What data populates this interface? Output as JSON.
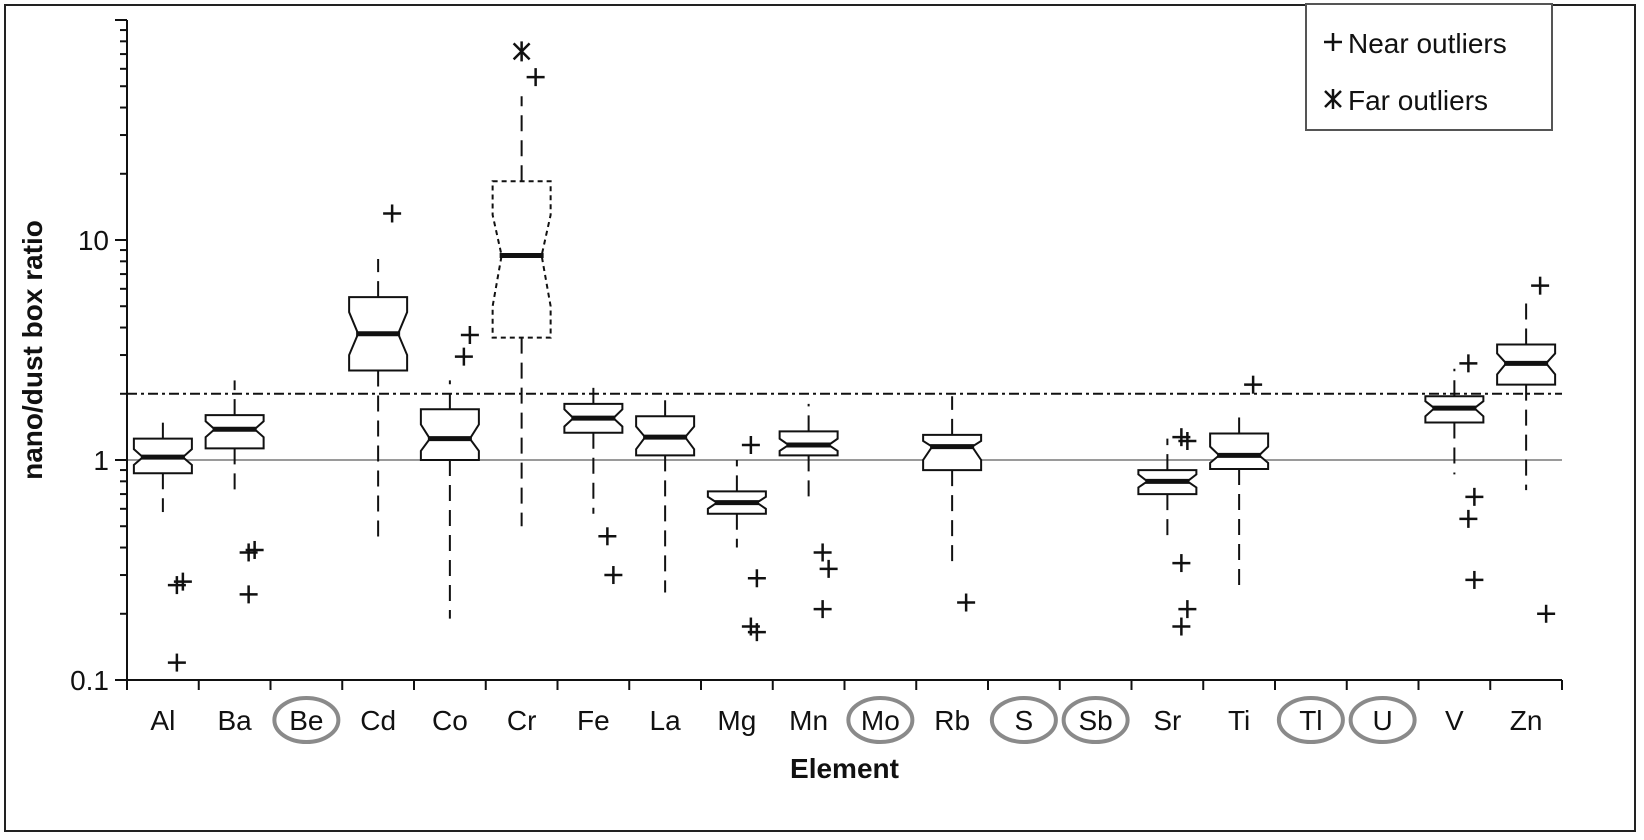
{
  "chart_data": {
    "type": "box",
    "xlabel": "Element",
    "ylabel": "nano/dust box ratio",
    "yscale": "log",
    "ylim": [
      0.1,
      100
    ],
    "yticks": [
      {
        "value": 0.1,
        "label": "0.1"
      },
      {
        "value": 1,
        "label": "1"
      },
      {
        "value": 10,
        "label": "10"
      }
    ],
    "reference_lines": [
      {
        "value": 1,
        "style": "solid",
        "color": "#9a9a9a"
      },
      {
        "value": 2,
        "style": "dash-dot",
        "color": "#111111"
      }
    ],
    "legend": {
      "position": "top-right",
      "items": [
        {
          "symbol": "+",
          "label": "Near outliers"
        },
        {
          "symbol": "✱",
          "label": "Far outliers"
        }
      ]
    },
    "categories": [
      "Al",
      "Ba",
      "Be",
      "Cd",
      "Co",
      "Cr",
      "Fe",
      "La",
      "Mg",
      "Mn",
      "Mo",
      "Rb",
      "S",
      "Sb",
      "Sr",
      "Ti",
      "Tl",
      "U",
      "V",
      "Zn"
    ],
    "circled_categories": [
      "Be",
      "Mo",
      "S",
      "Sb",
      "Tl",
      "U"
    ],
    "boxes": [
      {
        "category": "Al",
        "whisker_low": 0.58,
        "q1": 0.87,
        "median": 1.03,
        "q3": 1.25,
        "whisker_high": 1.5,
        "notch_low": 0.95,
        "notch_high": 1.12,
        "near_outliers": [
          0.27,
          0.28,
          0.12
        ],
        "far_outliers": [],
        "dashed_box": false
      },
      {
        "category": "Ba",
        "whisker_low": 0.7,
        "q1": 1.13,
        "median": 1.38,
        "q3": 1.6,
        "whisker_high": 2.3,
        "notch_low": 1.27,
        "notch_high": 1.5,
        "near_outliers": [
          0.38,
          0.39,
          0.245
        ],
        "far_outliers": [],
        "dashed_box": false
      },
      {
        "category": "Cd",
        "whisker_low": 0.44,
        "q1": 2.55,
        "median": 3.75,
        "q3": 5.5,
        "whisker_high": 8.2,
        "notch_low": 3.0,
        "notch_high": 4.7,
        "near_outliers": [
          13.2
        ],
        "far_outliers": [],
        "dashed_box": false
      },
      {
        "category": "Co",
        "whisker_low": 0.19,
        "q1": 1.0,
        "median": 1.25,
        "q3": 1.7,
        "whisker_high": 2.3,
        "notch_low": 1.1,
        "notch_high": 1.45,
        "near_outliers": [
          2.95,
          3.7
        ],
        "far_outliers": [],
        "dashed_box": false
      },
      {
        "category": "Cr",
        "whisker_low": 0.5,
        "q1": 3.6,
        "median": 8.5,
        "q3": 18.5,
        "whisker_high": 45,
        "notch_low": 5.0,
        "notch_high": 13.0,
        "near_outliers": [
          55
        ],
        "far_outliers": [
          72
        ],
        "dashed_box": true
      },
      {
        "category": "Fe",
        "whisker_low": 0.57,
        "q1": 1.33,
        "median": 1.55,
        "q3": 1.8,
        "whisker_high": 2.3,
        "notch_low": 1.42,
        "notch_high": 1.7,
        "near_outliers": [
          0.45,
          0.3
        ],
        "far_outliers": [],
        "dashed_box": false
      },
      {
        "category": "La",
        "whisker_low": 0.25,
        "q1": 1.05,
        "median": 1.27,
        "q3": 1.58,
        "whisker_high": 1.95,
        "notch_low": 1.12,
        "notch_high": 1.42,
        "near_outliers": [],
        "far_outliers": [],
        "dashed_box": false
      },
      {
        "category": "Mg",
        "whisker_low": 0.4,
        "q1": 0.57,
        "median": 0.64,
        "q3": 0.72,
        "whisker_high": 1.0,
        "notch_low": 0.6,
        "notch_high": 0.68,
        "near_outliers": [
          1.17,
          0.29,
          0.175,
          0.165
        ],
        "far_outliers": [],
        "dashed_box": false
      },
      {
        "category": "Mn",
        "whisker_low": 0.63,
        "q1": 1.05,
        "median": 1.17,
        "q3": 1.35,
        "whisker_high": 1.8,
        "notch_low": 1.1,
        "notch_high": 1.25,
        "near_outliers": [
          0.38,
          0.32,
          0.21
        ],
        "far_outliers": [],
        "dashed_box": false
      },
      {
        "category": "Rb",
        "whisker_low": 0.34,
        "q1": 0.9,
        "median": 1.15,
        "q3": 1.3,
        "whisker_high": 1.95,
        "notch_low": 1.0,
        "notch_high": 1.22,
        "near_outliers": [
          0.225
        ],
        "far_outliers": [],
        "dashed_box": false
      },
      {
        "category": "Sr",
        "whisker_low": 0.45,
        "q1": 0.7,
        "median": 0.8,
        "q3": 0.9,
        "whisker_high": 1.25,
        "notch_low": 0.75,
        "notch_high": 0.86,
        "near_outliers": [
          1.27,
          1.22,
          0.34,
          0.21,
          0.175
        ],
        "far_outliers": [],
        "dashed_box": false
      },
      {
        "category": "Ti",
        "whisker_low": 0.27,
        "q1": 0.91,
        "median": 1.05,
        "q3": 1.32,
        "whisker_high": 1.7,
        "notch_low": 0.97,
        "notch_high": 1.15,
        "near_outliers": [
          2.2
        ],
        "far_outliers": [],
        "dashed_box": false
      },
      {
        "category": "V",
        "whisker_low": 0.86,
        "q1": 1.48,
        "median": 1.72,
        "q3": 1.95,
        "whisker_high": 2.6,
        "notch_low": 1.58,
        "notch_high": 1.85,
        "near_outliers": [
          2.75,
          0.68,
          0.54,
          0.285
        ],
        "far_outliers": [],
        "dashed_box": false
      },
      {
        "category": "Zn",
        "whisker_low": 0.73,
        "q1": 2.2,
        "median": 2.75,
        "q3": 3.35,
        "whisker_high": 5.5,
        "notch_low": 2.45,
        "notch_high": 3.05,
        "near_outliers": [
          6.2,
          0.2
        ],
        "far_outliers": [],
        "dashed_box": false
      }
    ]
  }
}
